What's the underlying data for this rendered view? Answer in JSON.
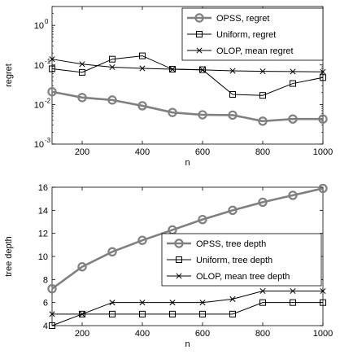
{
  "chart_data": [
    {
      "type": "line",
      "title": "",
      "xlabel": "n",
      "ylabel": "regret",
      "yscale": "log",
      "xlim": [
        100,
        1000
      ],
      "ylim": [
        0.001,
        3
      ],
      "xticks": [
        200,
        400,
        600,
        800,
        1000
      ],
      "xtick_labels": [
        "200",
        "400",
        "600",
        "800",
        "1000"
      ],
      "yticks": [
        0.001,
        0.01,
        0.1,
        1
      ],
      "ytick_labels": [
        {
          "base": "10",
          "exp": "-3"
        },
        {
          "base": "10",
          "exp": "-2"
        },
        {
          "base": "10",
          "exp": "-1"
        },
        {
          "base": "10",
          "exp": "0"
        }
      ],
      "grid": false,
      "legend_position": "top-right",
      "x": [
        100,
        200,
        300,
        400,
        500,
        600,
        700,
        800,
        900,
        1000
      ],
      "series": [
        {
          "name": "OPSS, regret",
          "marker": "circle",
          "line_width": "thick",
          "color": "#808080",
          "values": [
            0.021,
            0.015,
            0.013,
            0.0093,
            0.0063,
            0.0055,
            0.0054,
            0.0038,
            0.0043,
            0.0043
          ]
        },
        {
          "name": "Uniform, regret",
          "marker": "square",
          "line_width": "thin",
          "color": "#000000",
          "values": [
            0.08,
            0.065,
            0.14,
            0.17,
            0.078,
            0.076,
            0.018,
            0.017,
            0.034,
            0.048
          ]
        },
        {
          "name": "OLOP, mean regret",
          "marker": "x",
          "line_width": "thin",
          "color": "#000000",
          "values": [
            0.14,
            0.105,
            0.088,
            0.082,
            0.078,
            0.075,
            0.071,
            0.069,
            0.068,
            0.067
          ]
        }
      ]
    },
    {
      "type": "line",
      "title": "",
      "xlabel": "n",
      "ylabel": "tree depth",
      "xlim": [
        100,
        1000
      ],
      "ylim": [
        4,
        16
      ],
      "xticks": [
        200,
        400,
        600,
        800,
        1000
      ],
      "xtick_labels": [
        "200",
        "400",
        "600",
        "800",
        "1000"
      ],
      "yticks": [
        4,
        6,
        8,
        10,
        12,
        14,
        16
      ],
      "ytick_labels": [
        "4",
        "6",
        "8",
        "10",
        "12",
        "14",
        "16"
      ],
      "grid": false,
      "legend_position": "center-right",
      "x": [
        100,
        200,
        300,
        400,
        500,
        600,
        700,
        800,
        900,
        1000
      ],
      "series": [
        {
          "name": "OPSS, tree depth",
          "marker": "circle",
          "line_width": "thick",
          "color": "#808080",
          "values": [
            7.2,
            9.1,
            10.4,
            11.4,
            12.3,
            13.2,
            14.0,
            14.7,
            15.3,
            15.9
          ]
        },
        {
          "name": "Uniform, tree depth",
          "marker": "square",
          "line_width": "thin",
          "color": "#000000",
          "values": [
            4,
            5,
            5,
            5,
            5,
            5,
            5,
            6,
            6,
            6
          ]
        },
        {
          "name": "OLOP, mean tree depth",
          "marker": "x",
          "line_width": "thin",
          "color": "#000000",
          "values": [
            5,
            5,
            6,
            6,
            6,
            6,
            6.3,
            7,
            7,
            7
          ]
        }
      ]
    }
  ]
}
